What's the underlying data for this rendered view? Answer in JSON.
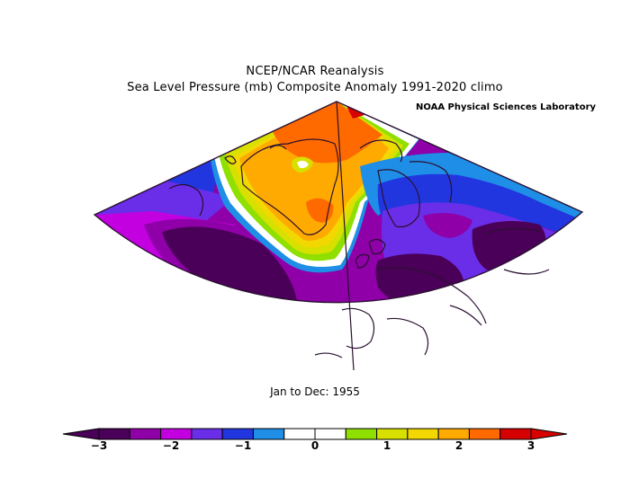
{
  "title": {
    "line1": "NCEP/NCAR Reanalysis",
    "line2": "Sea Level Pressure (mb) Composite Anomaly 1991-2020 climo",
    "credit": "NOAA Physical Sciences Laboratory"
  },
  "period": "Jan to Dec: 1955",
  "colorbar": {
    "colors": [
      "#4a0058",
      "#8f00a8",
      "#c200e0",
      "#6a2ee8",
      "#2236e0",
      "#1e8ee6",
      "#ffffff",
      "#ffffff",
      "#8fe000",
      "#d8e000",
      "#f2d800",
      "#ffaa00",
      "#ff6a00",
      "#d60000"
    ],
    "ticks": [
      {
        "label": "-3",
        "value": -3
      },
      {
        "label": "-2",
        "value": -2
      },
      {
        "label": "-1",
        "value": -1
      },
      {
        "label": "0",
        "value": 0
      },
      {
        "label": "1",
        "value": 1
      },
      {
        "label": "2",
        "value": 2
      },
      {
        "label": "3",
        "value": 3
      }
    ]
  }
}
